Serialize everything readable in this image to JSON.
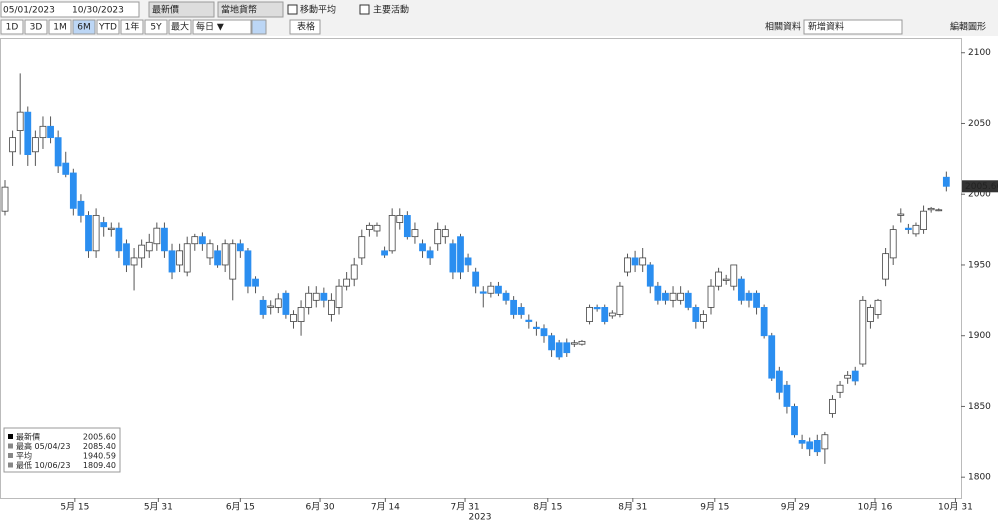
{
  "toolbar": {
    "start_date": "05/01/2023",
    "end_date": "10/30/2023",
    "price_field": "最新價",
    "currency": "當地貨幣",
    "moving_avg": "移動平均",
    "events": "主要活動",
    "periods": [
      "1D",
      "3D",
      "1M",
      "6M",
      "YTD",
      "1年",
      "5Y",
      "最大"
    ],
    "frequency": "每日 ▼",
    "table": "表格",
    "related": "相關資料 ▾",
    "add_data": "新增資料",
    "edit": "編輯圖形"
  },
  "chart_data": {
    "type": "candlestick",
    "candles": [
      [
        1988,
        2010,
        1985,
        2005
      ],
      [
        2030,
        2045,
        2020,
        2040
      ],
      [
        2045,
        2085.4,
        2028,
        2058
      ],
      [
        2058,
        2062,
        2020,
        2028
      ],
      [
        2030,
        2045,
        2020,
        2040
      ],
      [
        2040,
        2055,
        2032,
        2048
      ],
      [
        2048,
        2055,
        2036,
        2040
      ],
      [
        2040,
        2045,
        2015,
        2020
      ],
      [
        2022,
        2030,
        2012,
        2014
      ],
      [
        2015,
        2018,
        1985,
        1990
      ],
      [
        1995,
        2000,
        1980,
        1985
      ],
      [
        1985,
        1988,
        1955,
        1960
      ],
      [
        1960,
        1990,
        1955,
        1985
      ],
      [
        1980,
        1984,
        1970,
        1977
      ],
      [
        1975,
        1980,
        1970,
        1976
      ],
      [
        1976,
        1980,
        1955,
        1960
      ],
      [
        1965,
        1968,
        1945,
        1950
      ],
      [
        1950,
        1962,
        1932,
        1955
      ],
      [
        1955,
        1968,
        1948,
        1964
      ],
      [
        1960,
        1972,
        1955,
        1966
      ],
      [
        1965,
        1980,
        1960,
        1976
      ],
      [
        1976,
        1980,
        1955,
        1960
      ],
      [
        1960,
        1965,
        1940,
        1945
      ],
      [
        1950,
        1965,
        1945,
        1960
      ],
      [
        1945,
        1970,
        1942,
        1965
      ],
      [
        1965,
        1972,
        1960,
        1970
      ],
      [
        1970,
        1973,
        1960,
        1965
      ],
      [
        1955,
        1968,
        1950,
        1965
      ],
      [
        1960,
        1964,
        1948,
        1950
      ],
      [
        1950,
        1968,
        1945,
        1965
      ],
      [
        1940,
        1968,
        1925,
        1965
      ],
      [
        1965,
        1968,
        1955,
        1960
      ],
      [
        1960,
        1962,
        1930,
        1935
      ],
      [
        1940,
        1942,
        1930,
        1935
      ],
      [
        1925,
        1928,
        1912,
        1915
      ],
      [
        1920,
        1925,
        1915,
        1921
      ],
      [
        1920,
        1930,
        1916,
        1926
      ],
      [
        1930,
        1932,
        1912,
        1915
      ],
      [
        1910,
        1918,
        1905,
        1915
      ],
      [
        1910,
        1925,
        1900,
        1920
      ],
      [
        1920,
        1935,
        1915,
        1930
      ],
      [
        1925,
        1935,
        1920,
        1930
      ],
      [
        1930,
        1934,
        1920,
        1925
      ],
      [
        1915,
        1930,
        1910,
        1925
      ],
      [
        1920,
        1940,
        1915,
        1935
      ],
      [
        1935,
        1945,
        1932,
        1940
      ],
      [
        1940,
        1955,
        1935,
        1950
      ],
      [
        1955,
        1975,
        1950,
        1970
      ],
      [
        1975,
        1980,
        1970,
        1978
      ],
      [
        1974,
        1980,
        1970,
        1978
      ],
      [
        1960,
        1963,
        1955,
        1957
      ],
      [
        1960,
        1990,
        1958,
        1985
      ],
      [
        1980,
        1990,
        1975,
        1985
      ],
      [
        1985,
        1988,
        1968,
        1970
      ],
      [
        1970,
        1980,
        1965,
        1975
      ],
      [
        1965,
        1968,
        1955,
        1960
      ],
      [
        1960,
        1963,
        1950,
        1955
      ],
      [
        1965,
        1980,
        1960,
        1975
      ],
      [
        1970,
        1978,
        1965,
        1975
      ],
      [
        1965,
        1968,
        1940,
        1945
      ],
      [
        1970,
        1972,
        1940,
        1945
      ],
      [
        1955,
        1958,
        1945,
        1950
      ],
      [
        1945,
        1948,
        1930,
        1935
      ],
      [
        1931,
        1935,
        1920,
        1930
      ],
      [
        1930,
        1938,
        1927,
        1935
      ],
      [
        1935,
        1938,
        1928,
        1930
      ],
      [
        1930,
        1932,
        1922,
        1925
      ],
      [
        1925,
        1928,
        1912,
        1915
      ],
      [
        1920,
        1923,
        1912,
        1915
      ],
      [
        1911,
        1915,
        1905,
        1910
      ],
      [
        1906,
        1910,
        1900,
        1905
      ],
      [
        1905,
        1908,
        1895,
        1900
      ],
      [
        1900,
        1902,
        1885,
        1890
      ],
      [
        1895,
        1897,
        1883,
        1885
      ],
      [
        1895,
        1898,
        1885,
        1888
      ],
      [
        1894,
        1897,
        1892,
        1895
      ],
      [
        1894,
        1897,
        1893,
        1896
      ],
      [
        1910,
        1922,
        1908,
        1920
      ],
      [
        1920,
        1922,
        1917,
        1919
      ],
      [
        1920,
        1922,
        1908,
        1910
      ],
      [
        1914,
        1918,
        1912,
        1916
      ],
      [
        1915,
        1938,
        1913,
        1935
      ],
      [
        1945,
        1958,
        1942,
        1955
      ],
      [
        1955,
        1960,
        1945,
        1950
      ],
      [
        1950,
        1962,
        1945,
        1955
      ],
      [
        1950,
        1952,
        1930,
        1935
      ],
      [
        1935,
        1938,
        1922,
        1925
      ],
      [
        1930,
        1932,
        1922,
        1925
      ],
      [
        1925,
        1935,
        1920,
        1930
      ],
      [
        1925,
        1935,
        1922,
        1930
      ],
      [
        1930,
        1932,
        1918,
        1920
      ],
      [
        1920,
        1922,
        1905,
        1910
      ],
      [
        1910,
        1918,
        1905,
        1915
      ],
      [
        1920,
        1940,
        1915,
        1935
      ],
      [
        1935,
        1948,
        1932,
        1945
      ],
      [
        1939,
        1943,
        1936,
        1940
      ],
      [
        1935,
        1950,
        1932,
        1950
      ],
      [
        1940,
        1942,
        1922,
        1925
      ],
      [
        1930,
        1932,
        1920,
        1925
      ],
      [
        1930,
        1932,
        1915,
        1920
      ],
      [
        1920,
        1922,
        1898,
        1900
      ],
      [
        1900,
        1902,
        1868,
        1870
      ],
      [
        1875,
        1878,
        1855,
        1860
      ],
      [
        1865,
        1868,
        1845,
        1850
      ],
      [
        1850,
        1852,
        1828,
        1830
      ],
      [
        1826,
        1830,
        1820,
        1824
      ],
      [
        1825,
        1828,
        1815,
        1820
      ],
      [
        1826,
        1830,
        1815,
        1818
      ],
      [
        1820,
        1832,
        1809.4,
        1830
      ],
      [
        1845,
        1858,
        1842,
        1855
      ],
      [
        1860,
        1868,
        1856,
        1865
      ],
      [
        1870,
        1875,
        1866,
        1872
      ],
      [
        1875,
        1878,
        1865,
        1868
      ],
      [
        1880,
        1928,
        1878,
        1925
      ],
      [
        1910,
        1922,
        1905,
        1920
      ],
      [
        1915,
        1926,
        1912,
        1925
      ],
      [
        1940,
        1962,
        1935,
        1958
      ],
      [
        1955,
        1978,
        1950,
        1975
      ],
      [
        1985,
        1990,
        1980,
        1986
      ],
      [
        1976,
        1979,
        1972,
        1975
      ],
      [
        1972,
        1980,
        1970,
        1978
      ],
      [
        1975,
        1992,
        1972,
        1988
      ],
      [
        1989,
        1991,
        1987,
        1990
      ],
      [
        1989,
        1990,
        1988,
        1989
      ],
      [
        2012,
        2016,
        2002,
        2005.6
      ]
    ],
    "up_color": "#ffffff",
    "down_color": "#2b8ef0",
    "xlim": [
      -0.66,
      125.8
    ],
    "xticks": [
      {
        "value": 9.2,
        "label": "5月 15"
      },
      {
        "value": 20.2,
        "label": "5月 31"
      },
      {
        "value": 31,
        "label": "6月 15"
      },
      {
        "value": 41.5,
        "label": "6月 30"
      },
      {
        "value": 50.1,
        "label": "7月 14"
      },
      {
        "value": 60.6,
        "label": "7月 31"
      },
      {
        "value": 71.5,
        "label": "8月 15"
      },
      {
        "value": 82.7,
        "label": "8月 31"
      },
      {
        "value": 93.5,
        "label": "9月 15"
      },
      {
        "value": 104.1,
        "label": "9月 29"
      },
      {
        "value": 114.6,
        "label": "10月 16"
      },
      {
        "value": 125.2,
        "label": "10月 31"
      }
    ],
    "xlabel": "2023",
    "ylim": [
      1786,
      2109
    ],
    "yticks": [
      1800,
      1850,
      1900,
      1950,
      2000,
      2050,
      2100
    ],
    "grid": false,
    "last_label": "2005.60",
    "legend": [
      {
        "label": "最新價",
        "value": "2005.60"
      },
      {
        "label": "最高 05/04/23",
        "value": "2085.40"
      },
      {
        "label": "平均",
        "value": "1940.59"
      },
      {
        "label": "最低 10/06/23",
        "value": "1809.40"
      }
    ]
  }
}
